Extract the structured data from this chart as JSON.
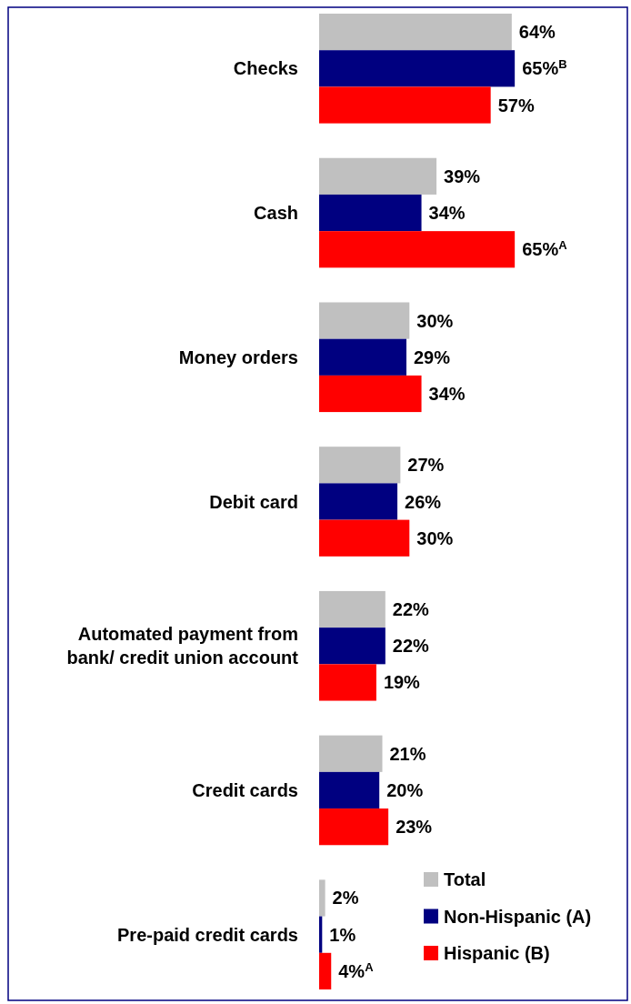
{
  "chart_data": {
    "type": "bar",
    "orientation": "horizontal",
    "categories": [
      "Checks",
      "Cash",
      "Money orders",
      "Debit card",
      "Automated payment from bank/ credit union account",
      "Credit cards",
      "Pre-paid credit cards"
    ],
    "series": [
      {
        "name": "Total",
        "color": "#c0c0c0",
        "values": [
          64,
          39,
          30,
          27,
          22,
          21,
          2
        ],
        "value_labels": [
          "64%",
          "39%",
          "30%",
          "27%",
          "22%",
          "21%",
          "2%"
        ]
      },
      {
        "name": "Non-Hispanic (A)",
        "color": "#000080",
        "values": [
          65,
          34,
          29,
          26,
          22,
          20,
          1
        ],
        "value_labels": [
          "65%$^{B}$",
          "34%",
          "29%",
          "26%",
          "22%",
          "20%",
          "1%"
        ]
      },
      {
        "name": "Hispanic (B)",
        "color": "#ff0000",
        "values": [
          57,
          65,
          34,
          30,
          19,
          23,
          4
        ],
        "value_labels": [
          "57%",
          "65%$^{A}$",
          "34%",
          "30%",
          "19%",
          "23%",
          "4%$^{A}$"
        ]
      }
    ],
    "legend": "bottom right"
  }
}
